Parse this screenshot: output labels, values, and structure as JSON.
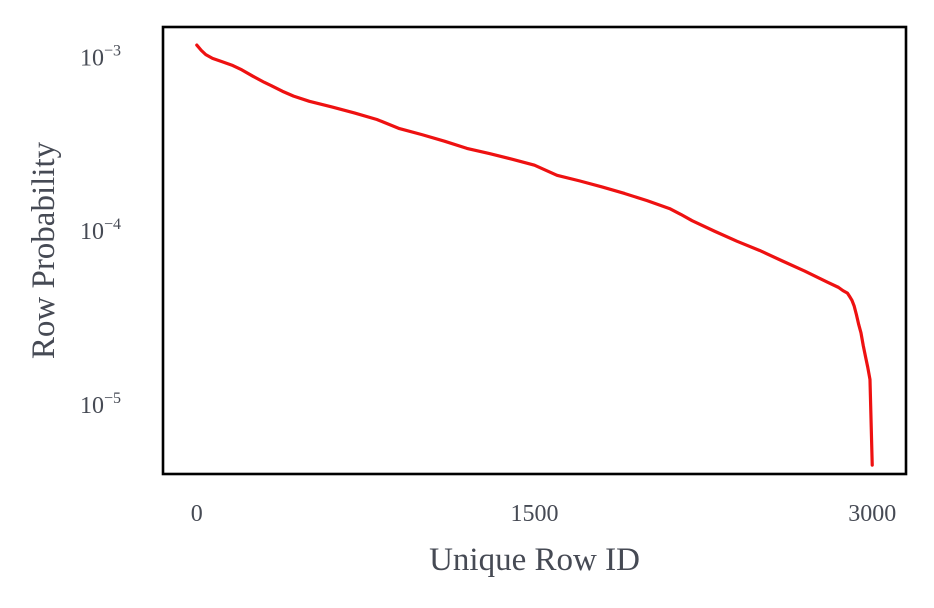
{
  "chart_data": {
    "type": "line",
    "title": "",
    "xlabel": "Unique Row ID",
    "ylabel": "Row Probability",
    "x_ticks": [
      {
        "value": 0,
        "label": "0"
      },
      {
        "value": 1500,
        "label": "1500"
      },
      {
        "value": 3000,
        "label": "3000"
      }
    ],
    "y_ticks": [
      {
        "value": 0.001,
        "base": "10",
        "exponent": "−3"
      },
      {
        "value": 0.0001,
        "base": "10",
        "exponent": "−4"
      },
      {
        "value": 1e-05,
        "base": "10",
        "exponent": "−5"
      }
    ],
    "yscale": "log",
    "xlim": [
      -150,
      3150
    ],
    "ylim": [
      4e-06,
      0.0015
    ],
    "grid": false,
    "legend": "none",
    "colors": {
      "line": "#ee1111",
      "frame": "#000000",
      "text": "#464a54"
    },
    "series": [
      {
        "x": [
          0,
          20,
          40,
          70,
          110,
          160,
          200,
          250,
          300,
          330,
          380,
          430,
          500,
          600,
          700,
          800,
          900,
          1000,
          1100,
          1200,
          1300,
          1400,
          1500,
          1600,
          1700,
          1800,
          1900,
          2000,
          2100,
          2150,
          2200,
          2300,
          2400,
          2500,
          2600,
          2700,
          2800,
          2850,
          2870,
          2890,
          2900,
          2910,
          2920,
          2930,
          2940,
          2950,
          2960,
          2970,
          2980,
          2990,
          3000
        ],
        "y": [
          0.00118,
          0.0011,
          0.00104,
          0.00099,
          0.00095,
          0.0009,
          0.00085,
          0.00078,
          0.00072,
          0.00069,
          0.00064,
          0.0006,
          0.00056,
          0.00052,
          0.00048,
          0.00044,
          0.00039,
          0.00036,
          0.00033,
          0.0003,
          0.00028,
          0.00026,
          0.00024,
          0.00021,
          0.000195,
          0.00018,
          0.000165,
          0.00015,
          0.000135,
          0.000125,
          0.000115,
          0.0001,
          8.75e-05,
          7.75e-05,
          6.75e-05,
          5.9e-05,
          5.1e-05,
          4.75e-05,
          4.55e-05,
          4.4e-05,
          4.2e-05,
          4e-05,
          3.7e-05,
          3.3e-05,
          2.9e-05,
          2.6e-05,
          2.2e-05,
          1.9e-05,
          1.65e-05,
          1.4e-05,
          4.5e-06
        ]
      }
    ]
  }
}
